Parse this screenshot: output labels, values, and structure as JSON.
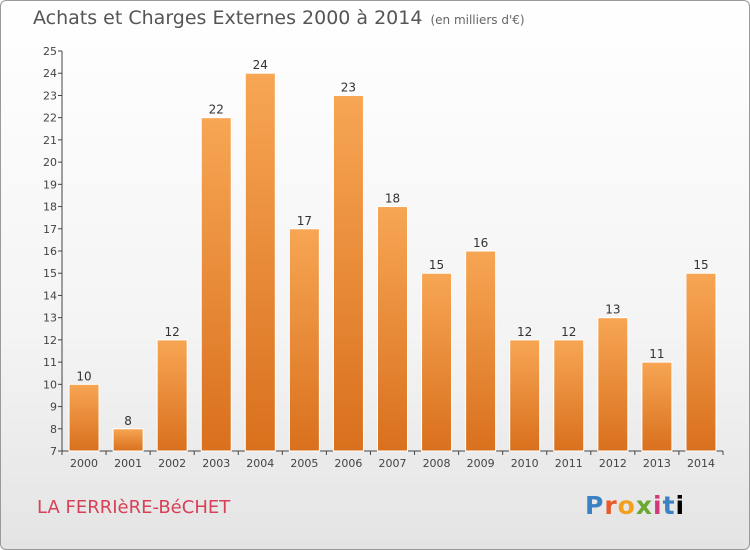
{
  "header": {
    "title": "Achats et Charges Externes 2000 à 2014",
    "subtitle": "(en milliers d'€)"
  },
  "footer": {
    "place": "LA FERRIèRE-BéCHET",
    "logo": [
      "P",
      "r",
      "o",
      "x",
      "i",
      "t",
      "i"
    ]
  },
  "colors": {
    "bar_light": "#f7a654",
    "bar_dark": "#d9701d",
    "place_text": "#d84057"
  },
  "chart_data": {
    "type": "bar",
    "title": "Achats et Charges Externes 2000 à 2014",
    "subtitle": "(en milliers d'€)",
    "categories": [
      "2000",
      "2001",
      "2002",
      "2003",
      "2004",
      "2005",
      "2006",
      "2007",
      "2008",
      "2009",
      "2010",
      "2011",
      "2012",
      "2013",
      "2014"
    ],
    "values": [
      10,
      8,
      12,
      22,
      24,
      17,
      23,
      18,
      15,
      16,
      12,
      12,
      13,
      11,
      15
    ],
    "ylim": [
      7,
      25
    ],
    "yticks": [
      7,
      8,
      9,
      10,
      11,
      12,
      13,
      14,
      15,
      16,
      17,
      18,
      19,
      20,
      21,
      22,
      23,
      24,
      25
    ],
    "xlabel": "",
    "ylabel": "",
    "grid": false,
    "data_labels": true
  }
}
